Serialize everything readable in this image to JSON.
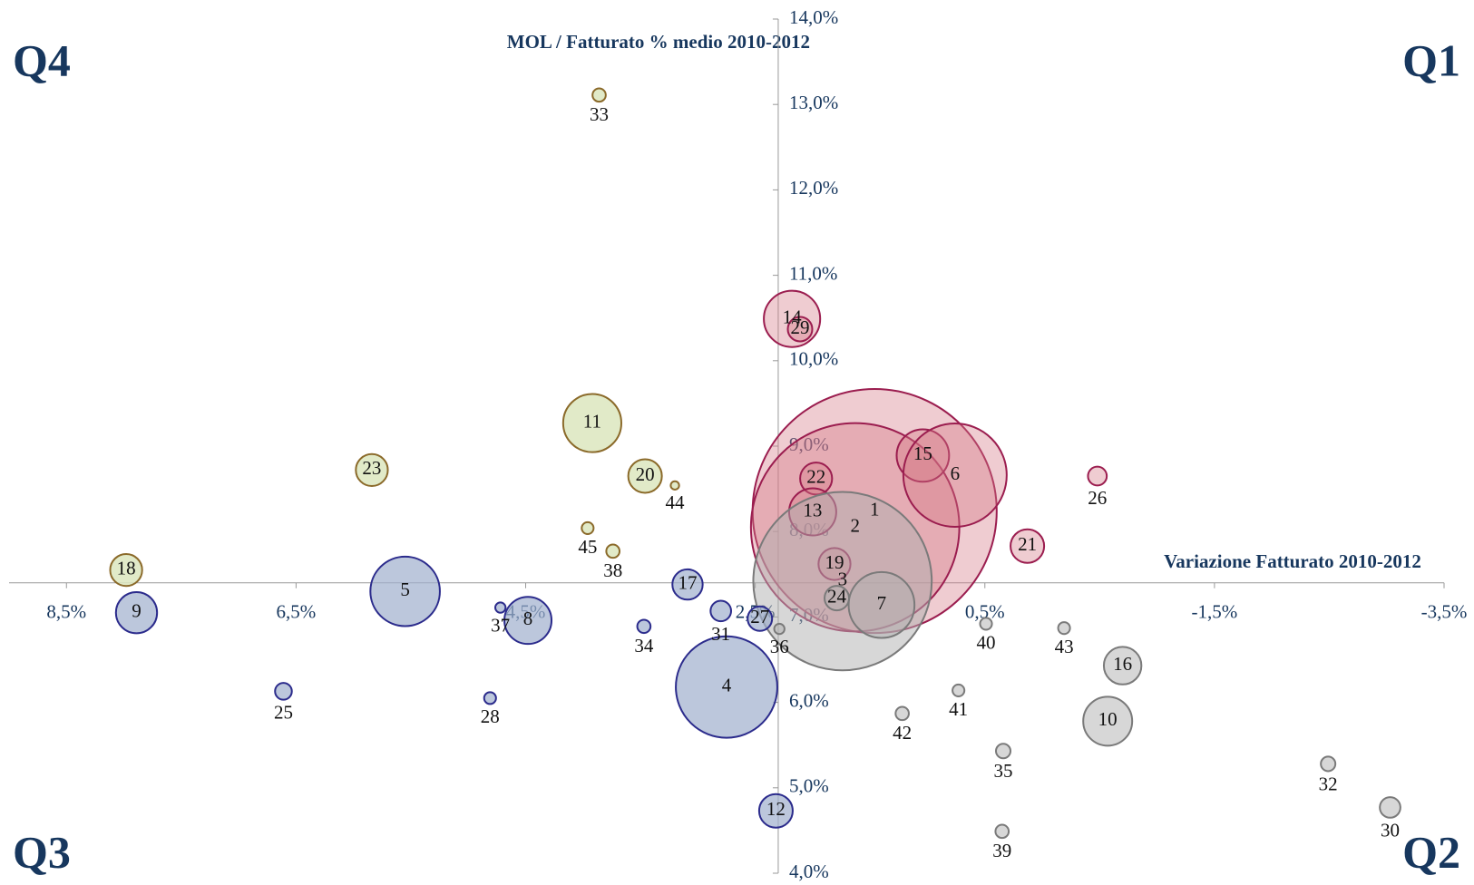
{
  "chart_data": {
    "type": "bubble",
    "x_label": "Variazione Fatturato 2010-2012",
    "y_label": "MOL / Fatturato % medio 2010-2012",
    "xlim": [
      9,
      -3.5
    ],
    "ylim": [
      4,
      14
    ],
    "x_axis_at_y": 7.4,
    "y_axis_at_x": 2.3,
    "xticks": [
      {
        "value": 8.5,
        "label": "8,5%"
      },
      {
        "value": 6.5,
        "label": "6,5%"
      },
      {
        "value": 4.5,
        "label": "4,5%"
      },
      {
        "value": 2.5,
        "label": "2,5%"
      },
      {
        "value": 0.5,
        "label": "0,5%"
      },
      {
        "value": -1.5,
        "label": "-1,5%"
      },
      {
        "value": -3.5,
        "label": "-3,5%"
      }
    ],
    "yticks": [
      {
        "value": 4,
        "label": "4,0%"
      },
      {
        "value": 5,
        "label": "5,0%"
      },
      {
        "value": 6,
        "label": "6,0%"
      },
      {
        "value": 7,
        "label": "7,0%"
      },
      {
        "value": 8,
        "label": "8,0%"
      },
      {
        "value": 9,
        "label": "9,0%"
      },
      {
        "value": 10,
        "label": "10,0%"
      },
      {
        "value": 11,
        "label": "11,0%"
      },
      {
        "value": 12,
        "label": "12,0%"
      },
      {
        "value": 13,
        "label": "13,0%"
      },
      {
        "value": 14,
        "label": "14,0%"
      }
    ],
    "series": [
      {
        "name": "Q1",
        "color": "#9b1d4f",
        "fill": "rgba(214,120,135,0.38)",
        "labels": [
          "1",
          "2",
          "15",
          "6",
          "22",
          "13",
          "19",
          "21",
          "26",
          "14",
          "29"
        ],
        "x": [
          1.46,
          1.63,
          1.04,
          0.76,
          1.97,
          2.0,
          1.81,
          0.13,
          -0.48,
          2.18,
          2.11
        ],
        "values": [
          8.24,
          8.05,
          8.89,
          8.66,
          8.62,
          8.23,
          7.62,
          7.83,
          8.65,
          10.49,
          10.37
        ],
        "sizes": [
          1690,
          1232,
          78,
          303,
          29,
          63,
          29,
          32,
          10,
          90,
          17
        ]
      },
      {
        "name": "Q2",
        "color": "#7a7a7a",
        "fill": "rgba(175,175,175,0.5)",
        "labels": [
          "3",
          "24",
          "7",
          "36",
          "40",
          "43",
          "16",
          "10",
          "41",
          "42",
          "35",
          "39",
          "32",
          "30"
        ],
        "x": [
          1.74,
          1.79,
          1.4,
          2.29,
          0.49,
          -0.19,
          -0.7,
          -0.57,
          0.73,
          1.22,
          0.34,
          0.35,
          -2.49,
          -3.03
        ],
        "values": [
          7.42,
          7.22,
          7.14,
          6.86,
          6.92,
          6.87,
          6.43,
          5.78,
          6.14,
          5.87,
          5.43,
          4.49,
          5.28,
          4.77
        ],
        "sizes": [
          903,
          17,
          123,
          3,
          4,
          4,
          40,
          68,
          4,
          5,
          6,
          5,
          6,
          12
        ]
      },
      {
        "name": "Q3",
        "color": "#2b2b8c",
        "fill": "rgba(160,175,205,0.7)",
        "labels": [
          "5",
          "9",
          "8",
          "37",
          "17",
          "31",
          "27",
          "34",
          "4",
          "25",
          "28",
          "12"
        ],
        "x": [
          5.55,
          7.89,
          4.48,
          4.72,
          3.09,
          2.8,
          2.46,
          3.47,
          2.75,
          6.61,
          4.81,
          2.32
        ],
        "values": [
          7.3,
          7.05,
          6.96,
          7.11,
          7.38,
          7.07,
          6.98,
          6.89,
          6.18,
          6.13,
          6.05,
          4.73
        ],
        "sizes": [
          137,
          48,
          63,
          3,
          26,
          12,
          17,
          5,
          292,
          8,
          4,
          32
        ]
      },
      {
        "name": "Q4",
        "color": "#8b6a2a",
        "fill": "rgba(220,230,190,0.85)",
        "labels": [
          "33",
          "11",
          "20",
          "44",
          "23",
          "45",
          "38",
          "18"
        ],
        "x": [
          3.86,
          3.92,
          3.46,
          3.2,
          5.84,
          3.96,
          3.74,
          7.98
        ],
        "values": [
          13.11,
          9.27,
          8.65,
          8.54,
          8.72,
          8.04,
          7.77,
          7.55
        ],
        "sizes": [
          5,
          96,
          32,
          2,
          29,
          4,
          5,
          29
        ]
      }
    ]
  }
}
